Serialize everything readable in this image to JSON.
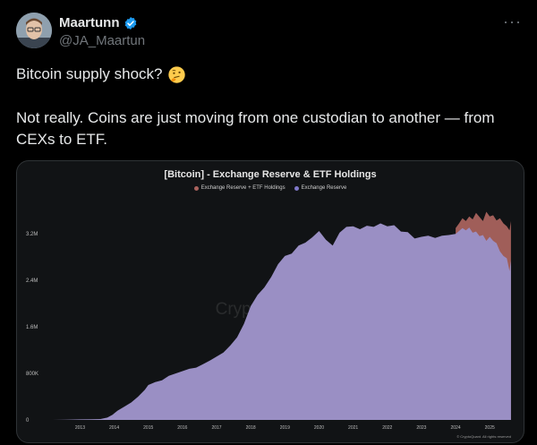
{
  "author": {
    "name": "Maartunn",
    "handle": "@JA_Maartun",
    "verified_icon": "verified-badge-icon",
    "more_icon": "more-options-icon",
    "more_label": "···"
  },
  "tweet": {
    "line1": "Bitcoin supply shock?",
    "emoji": "thinking-face-icon",
    "line2": "Not really. Coins are just moving from one custodian to another — from CEXs to ETF."
  },
  "colors": {
    "background": "#000000",
    "text": "#e7e9ea",
    "muted": "#71767b",
    "verified": "#1d9bf0",
    "etf_series": "#a9625d",
    "exchange_series": "#9a8fc4"
  },
  "chart_data": {
    "type": "area",
    "title": "[Bitcoin] - Exchange Reserve & ETF Holdings",
    "watermark": "CryptoQuant",
    "credit": "© CryptoQuant. All rights reserved",
    "xlabel": "",
    "ylabel": "",
    "x_ticks": [
      "2013",
      "2014",
      "2015",
      "2016",
      "2017",
      "2018",
      "2019",
      "2020",
      "2021",
      "2022",
      "2023",
      "2024",
      "2025"
    ],
    "y_ticks": [
      "0",
      "800K",
      "1.6M",
      "2.4M",
      "3.2M"
    ],
    "y_tick_values": [
      0,
      800000,
      1600000,
      2400000,
      3200000
    ],
    "ylim": [
      0,
      3650000
    ],
    "xlim": [
      2012.15,
      2025.65
    ],
    "grid": false,
    "legend_position": "top-center",
    "series": [
      {
        "name": "Exchange Reserve + ETF Holdings",
        "color": "#a9625d",
        "x": [
          2024.0,
          2024.1,
          2024.2,
          2024.3,
          2024.4,
          2024.5,
          2024.6,
          2024.7,
          2024.8,
          2024.9,
          2025.0,
          2025.1,
          2025.2,
          2025.3,
          2025.4,
          2025.5,
          2025.58,
          2025.62
        ],
        "values": [
          3300000,
          3380000,
          3470000,
          3420000,
          3500000,
          3450000,
          3560000,
          3490000,
          3420000,
          3580000,
          3500000,
          3520000,
          3430000,
          3470000,
          3380000,
          3330000,
          3260000,
          3420000
        ]
      },
      {
        "name": "Exchange Reserve",
        "color": "#9a8fc4",
        "x": [
          2012.2,
          2012.6,
          2013.0,
          2013.3,
          2013.6,
          2013.8,
          2013.95,
          2014.1,
          2014.3,
          2014.5,
          2014.7,
          2014.9,
          2015.0,
          2015.2,
          2015.4,
          2015.6,
          2015.8,
          2016.0,
          2016.2,
          2016.4,
          2016.6,
          2016.8,
          2017.0,
          2017.2,
          2017.4,
          2017.6,
          2017.8,
          2018.0,
          2018.2,
          2018.4,
          2018.6,
          2018.8,
          2019.0,
          2019.2,
          2019.4,
          2019.6,
          2019.8,
          2020.0,
          2020.2,
          2020.4,
          2020.6,
          2020.8,
          2021.0,
          2021.2,
          2021.4,
          2021.6,
          2021.8,
          2022.0,
          2022.2,
          2022.4,
          2022.6,
          2022.8,
          2023.0,
          2023.2,
          2023.4,
          2023.6,
          2023.8,
          2024.0,
          2024.1,
          2024.2,
          2024.3,
          2024.4,
          2024.5,
          2024.6,
          2024.7,
          2024.8,
          2024.9,
          2025.0,
          2025.1,
          2025.2,
          2025.3,
          2025.4,
          2025.5,
          2025.58,
          2025.62
        ],
        "values": [
          0,
          5000,
          10000,
          12000,
          15000,
          40000,
          90000,
          160000,
          230000,
          300000,
          400000,
          520000,
          600000,
          650000,
          680000,
          760000,
          800000,
          840000,
          880000,
          900000,
          960000,
          1020000,
          1090000,
          1160000,
          1280000,
          1420000,
          1650000,
          1960000,
          2150000,
          2280000,
          2460000,
          2680000,
          2820000,
          2860000,
          3000000,
          3050000,
          3140000,
          3250000,
          3100000,
          3000000,
          3220000,
          3320000,
          3330000,
          3280000,
          3340000,
          3320000,
          3380000,
          3330000,
          3350000,
          3240000,
          3230000,
          3120000,
          3150000,
          3170000,
          3130000,
          3170000,
          3180000,
          3200000,
          3250000,
          3300000,
          3260000,
          3310000,
          3220000,
          3240000,
          3160000,
          3180000,
          3080000,
          3150000,
          3080000,
          3040000,
          2900000,
          2820000,
          2780000,
          2560000,
          2740000
        ]
      }
    ]
  }
}
